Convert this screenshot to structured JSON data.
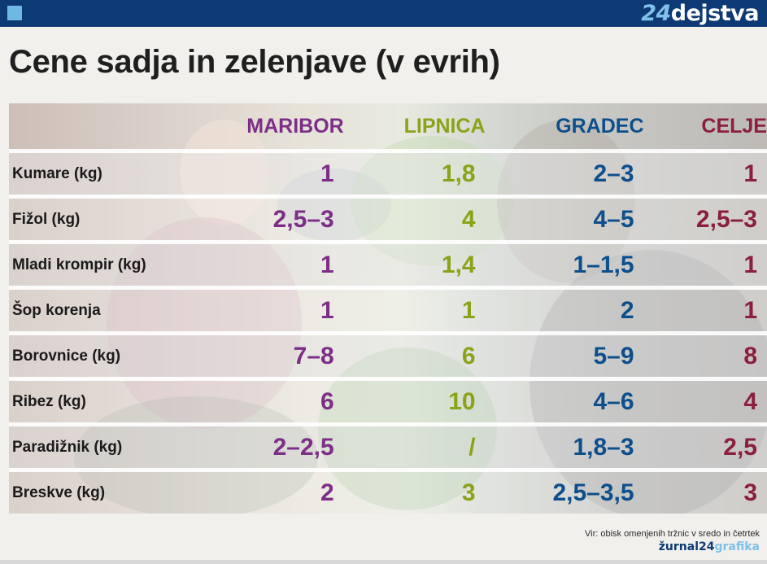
{
  "header": {
    "brand_number": "24",
    "brand_word": "dejstva"
  },
  "title": "Cene sadja in zelenjave (v evrih)",
  "table": {
    "columns": [
      "MARIBOR",
      "LIPNICA",
      "GRADEC",
      "CELJE"
    ],
    "column_colors": [
      "#7d2e86",
      "#8aa318",
      "#0d4f8c",
      "#8b1f3d"
    ],
    "rows": [
      {
        "label": "Kumare (kg)",
        "values": [
          "1",
          "1,8",
          "2–3",
          "1"
        ]
      },
      {
        "label": "Fižol (kg)",
        "values": [
          "2,5–3",
          "4",
          "4–5",
          "2,5–3"
        ]
      },
      {
        "label": "Mladi krompir (kg)",
        "values": [
          "1",
          "1,4",
          "1–1,5",
          "1"
        ]
      },
      {
        "label": "Šop korenja",
        "values": [
          "1",
          "1",
          "2",
          "1"
        ]
      },
      {
        "label": "Borovnice (kg)",
        "values": [
          "7–8",
          "6",
          "5–9",
          "8"
        ]
      },
      {
        "label": "Ribez (kg)",
        "values": [
          "6",
          "10",
          "4–6",
          "4"
        ]
      },
      {
        "label": "Paradižnik (kg)",
        "values": [
          "2–2,5",
          "/",
          "1,8–3",
          "2,5"
        ]
      },
      {
        "label": "Breskve (kg)",
        "values": [
          "2",
          "3",
          "2,5–3,5",
          "3"
        ]
      }
    ]
  },
  "source": "Vir: obisk omenjenih tržnic v sredo in četrtek",
  "credit": {
    "prefix": "žurnal24",
    "suffix": "grafika"
  },
  "colors": {
    "topbar": "#0d3a74",
    "accent_light_blue": "#7fc1ea"
  }
}
